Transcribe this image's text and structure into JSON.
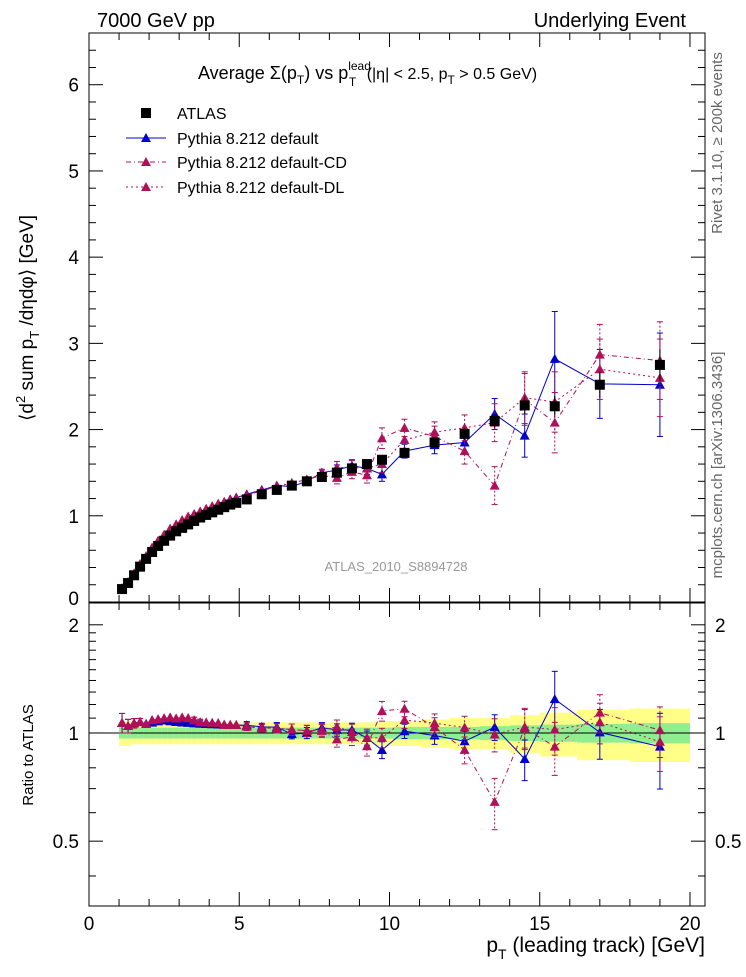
{
  "header": {
    "left": "7000 GeV pp",
    "right": "Underlying Event"
  },
  "side_labels": {
    "rivet": "Rivet 3.1.10, ≥ 200k events",
    "mcplots": "mcplots.cern.ch [arXiv:1306.3436]"
  },
  "watermark": "ATLAS_2010_S8894728",
  "colors": {
    "data": "#000000",
    "default": "#0000cc",
    "cd": "#b0105a",
    "dl": "#b0105a",
    "band_inner": "#90ee90",
    "band_outer": "#ffff88"
  },
  "chart_data": {
    "type": "scatter",
    "title_parts": {
      "main": "Average Σ(p",
      "sub1": "T",
      "mid": ") vs p",
      "sup": "lead",
      "sub2": "T",
      "tail1": " (|η| < 2.5, p",
      "sub3": "T",
      "tail2": " > 0.5 GeV)"
    },
    "ylabel_parts": {
      "a": "⟨d",
      "sup": "2",
      "b": " sum p",
      "sub": "T",
      "c": " /dηdφ⟩ [GeV]"
    },
    "xlabel_parts": {
      "a": "p",
      "sub": "T",
      "b": " (leading track) [GeV]"
    },
    "ratio_ylabel": "Ratio to ATLAS",
    "xlim": [
      0,
      20.5
    ],
    "ylim": [
      0,
      6.6
    ],
    "ratio_ylim": [
      0.33,
      2.3
    ],
    "x_ticks": [
      "0",
      "5",
      "10",
      "15",
      "20"
    ],
    "y_ticks": [
      "0",
      "1",
      "2",
      "3",
      "4",
      "5",
      "6"
    ],
    "ratio_ticks": [
      "0.5",
      "1",
      "2"
    ],
    "legend_position": "top-left",
    "x": [
      1.1,
      1.3,
      1.5,
      1.7,
      1.9,
      2.1,
      2.3,
      2.5,
      2.7,
      2.9,
      3.1,
      3.3,
      3.5,
      3.7,
      3.9,
      4.1,
      4.3,
      4.5,
      4.7,
      4.9,
      5.25,
      5.75,
      6.25,
      6.75,
      7.25,
      7.75,
      8.25,
      8.75,
      9.25,
      9.75,
      10.5,
      11.5,
      12.5,
      13.5,
      14.5,
      15.5,
      17.0,
      19.0
    ],
    "series": [
      {
        "name": "ATLAS",
        "marker": "square",
        "values": [
          0.15,
          0.22,
          0.31,
          0.41,
          0.5,
          0.58,
          0.65,
          0.71,
          0.77,
          0.82,
          0.86,
          0.9,
          0.94,
          0.98,
          1.01,
          1.04,
          1.07,
          1.1,
          1.13,
          1.15,
          1.19,
          1.25,
          1.3,
          1.35,
          1.4,
          1.45,
          1.5,
          1.55,
          1.6,
          1.65,
          1.73,
          1.85,
          1.95,
          2.1,
          2.28,
          2.27,
          2.52,
          2.75
        ],
        "errors": [
          0.01,
          0.01,
          0.01,
          0.01,
          0.01,
          0.01,
          0.02,
          0.02,
          0.02,
          0.02,
          0.02,
          0.02,
          0.02,
          0.02,
          0.02,
          0.02,
          0.02,
          0.02,
          0.03,
          0.03,
          0.03,
          0.03,
          0.03,
          0.03,
          0.04,
          0.04,
          0.04,
          0.04,
          0.05,
          0.05,
          0.05,
          0.06,
          0.07,
          0.08,
          0.1,
          0.12,
          0.15,
          0.18
        ]
      },
      {
        "name": "Pythia 8.212 default",
        "marker": "triangle",
        "line": "solid",
        "values": [
          0.16,
          0.23,
          0.33,
          0.44,
          0.53,
          0.62,
          0.7,
          0.77,
          0.83,
          0.88,
          0.92,
          0.96,
          1.0,
          1.04,
          1.07,
          1.1,
          1.13,
          1.16,
          1.19,
          1.21,
          1.25,
          1.3,
          1.35,
          1.34,
          1.4,
          1.5,
          1.53,
          1.58,
          1.55,
          1.48,
          1.75,
          1.82,
          1.85,
          2.18,
          1.93,
          2.82,
          2.53,
          2.52
        ],
        "errors": [
          0.01,
          0.01,
          0.01,
          0.01,
          0.01,
          0.01,
          0.01,
          0.01,
          0.01,
          0.01,
          0.01,
          0.01,
          0.02,
          0.02,
          0.02,
          0.02,
          0.02,
          0.02,
          0.02,
          0.02,
          0.03,
          0.03,
          0.04,
          0.04,
          0.05,
          0.05,
          0.06,
          0.07,
          0.07,
          0.08,
          0.08,
          0.1,
          0.12,
          0.18,
          0.25,
          0.55,
          0.4,
          0.6
        ]
      },
      {
        "name": "Pythia 8.212 default-CD",
        "marker": "triangle",
        "line": "dashdot",
        "values": [
          0.16,
          0.23,
          0.33,
          0.44,
          0.53,
          0.63,
          0.71,
          0.78,
          0.85,
          0.9,
          0.95,
          0.99,
          1.02,
          1.05,
          1.08,
          1.11,
          1.14,
          1.16,
          1.19,
          1.21,
          1.24,
          1.29,
          1.34,
          1.38,
          1.42,
          1.47,
          1.44,
          1.51,
          1.47,
          1.9,
          2.02,
          1.92,
          1.75,
          1.35,
          2.35,
          2.08,
          2.87,
          2.8
        ],
        "errors": [
          0.01,
          0.01,
          0.01,
          0.01,
          0.01,
          0.01,
          0.01,
          0.01,
          0.01,
          0.01,
          0.01,
          0.01,
          0.02,
          0.02,
          0.02,
          0.02,
          0.02,
          0.02,
          0.02,
          0.02,
          0.03,
          0.03,
          0.04,
          0.05,
          0.05,
          0.06,
          0.07,
          0.08,
          0.09,
          0.12,
          0.1,
          0.12,
          0.15,
          0.22,
          0.3,
          0.35,
          0.35,
          0.45
        ]
      },
      {
        "name": "Pythia 8.212 default-DL",
        "marker": "triangle",
        "line": "dotted",
        "values": [
          0.16,
          0.23,
          0.33,
          0.44,
          0.53,
          0.63,
          0.71,
          0.78,
          0.85,
          0.9,
          0.95,
          0.99,
          1.02,
          1.05,
          1.08,
          1.11,
          1.14,
          1.16,
          1.19,
          1.21,
          1.24,
          1.29,
          1.34,
          1.38,
          1.42,
          1.48,
          1.56,
          1.56,
          1.55,
          1.6,
          1.88,
          1.97,
          2.02,
          2.08,
          2.37,
          2.32,
          2.7,
          2.6
        ],
        "errors": [
          0.01,
          0.01,
          0.01,
          0.01,
          0.01,
          0.01,
          0.01,
          0.01,
          0.01,
          0.01,
          0.01,
          0.01,
          0.02,
          0.02,
          0.02,
          0.02,
          0.02,
          0.02,
          0.02,
          0.02,
          0.03,
          0.03,
          0.04,
          0.05,
          0.05,
          0.06,
          0.07,
          0.08,
          0.09,
          0.1,
          0.1,
          0.12,
          0.15,
          0.22,
          0.3,
          0.35,
          0.35,
          0.45
        ]
      }
    ],
    "ratio_band_inner": [
      0.035,
      0.035,
      0.035,
      0.035,
      0.035,
      0.035,
      0.035,
      0.035,
      0.035,
      0.035,
      0.035,
      0.035,
      0.035,
      0.035,
      0.035,
      0.035,
      0.035,
      0.035,
      0.035,
      0.035,
      0.035,
      0.035,
      0.035,
      0.035,
      0.035,
      0.035,
      0.035,
      0.035,
      0.035,
      0.035,
      0.04,
      0.04,
      0.04,
      0.045,
      0.05,
      0.055,
      0.06,
      0.065
    ],
    "ratio_band_outer": [
      0.08,
      0.08,
      0.07,
      0.07,
      0.07,
      0.07,
      0.07,
      0.07,
      0.07,
      0.07,
      0.07,
      0.07,
      0.07,
      0.07,
      0.07,
      0.07,
      0.07,
      0.07,
      0.07,
      0.07,
      0.07,
      0.07,
      0.07,
      0.07,
      0.07,
      0.07,
      0.07,
      0.07,
      0.07,
      0.08,
      0.08,
      0.09,
      0.1,
      0.1,
      0.12,
      0.14,
      0.16,
      0.17
    ]
  }
}
